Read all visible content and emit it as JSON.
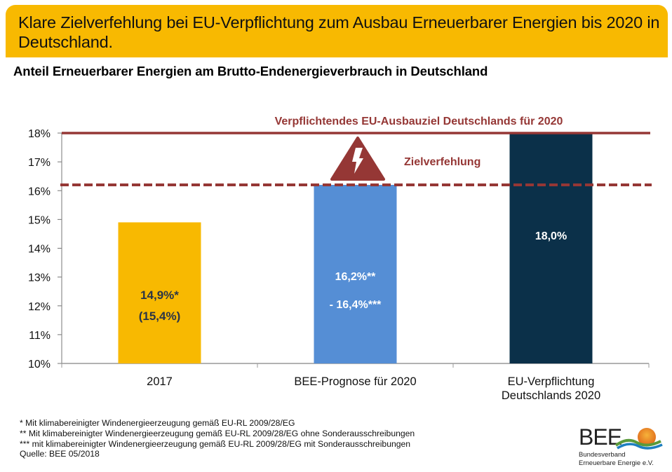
{
  "header": {
    "title": "Klare Zielverfehlung bei EU-Verpflichtung zum Ausbau Erneuerbarer Energien bis 2020 in Deutschland."
  },
  "subtitle": "Anteil Erneuerbarer Energien am Brutto-Endenergieverbrauch in Deutschland",
  "colors": {
    "header_bg": "#F8B901",
    "bar_2017": "#F8B901",
    "bar_bee": "#558ED5",
    "bar_eu": "#0B3049",
    "target_line": "#953735",
    "warning": "#953735"
  },
  "chart_data": {
    "type": "bar",
    "title": "Anteil Erneuerbarer Energien am Brutto-Endenergieverbrauch in Deutschland",
    "xlabel": "",
    "ylabel": "",
    "ylim": [
      10,
      18
    ],
    "yticks": [
      10,
      11,
      12,
      13,
      14,
      15,
      16,
      17,
      18
    ],
    "ytick_labels": [
      "10%",
      "11%",
      "12%",
      "13%",
      "14%",
      "15%",
      "16%",
      "17%",
      "18%"
    ],
    "grid": false,
    "categories": [
      "2017",
      "BEE-Prognose für 2020",
      "EU-Verpflichtung Deutschlands 2020"
    ],
    "category_lines": [
      [
        "2017"
      ],
      [
        "BEE-Prognose für 2020"
      ],
      [
        "EU-Verpflichtung",
        "Deutschlands 2020"
      ]
    ],
    "values": [
      14.9,
      16.2,
      18.0
    ],
    "bar_colors": [
      "#F8B901",
      "#558ED5",
      "#0B3049"
    ],
    "data_labels": [
      [
        "14,9%*",
        "(15,4%)"
      ],
      [
        "16,2%**",
        "- 16,4%***"
      ],
      [
        "18,0%"
      ]
    ],
    "data_label_colors": [
      "#2B3547",
      "#ffffff",
      "#ffffff"
    ],
    "reference_lines": [
      {
        "name": "EU-Ausbauziel",
        "value": 18.0,
        "style": "solid",
        "label": "Verpflichtendes EU-Ausbauziel Deutschlands für 2020"
      },
      {
        "name": "BEE-Prognose",
        "value": 16.2,
        "style": "dashed",
        "label": ""
      }
    ],
    "annotations": [
      {
        "text": "Zielverfehlung",
        "icon": "warning-lightning-icon"
      }
    ]
  },
  "footnotes": [
    "* Mit klimabereinigter Windenergieerzeugung gemäß EU-RL 2009/28/EG",
    "** Mit klimabereinigter Windenergieerzeugung gemäß EU-RL 2009/28/EG ohne Sonderausschreibungen",
    "*** mit klimabereinigter Windenergieerzeugung gemäß EU-RL 2009/28/EG mit Sonderausschreibungen",
    "Quelle: BEE 05/2018"
  ],
  "logo": {
    "name": "BEE",
    "line1": "Bundesverband",
    "line2": "Erneuerbare Energie e.V."
  }
}
